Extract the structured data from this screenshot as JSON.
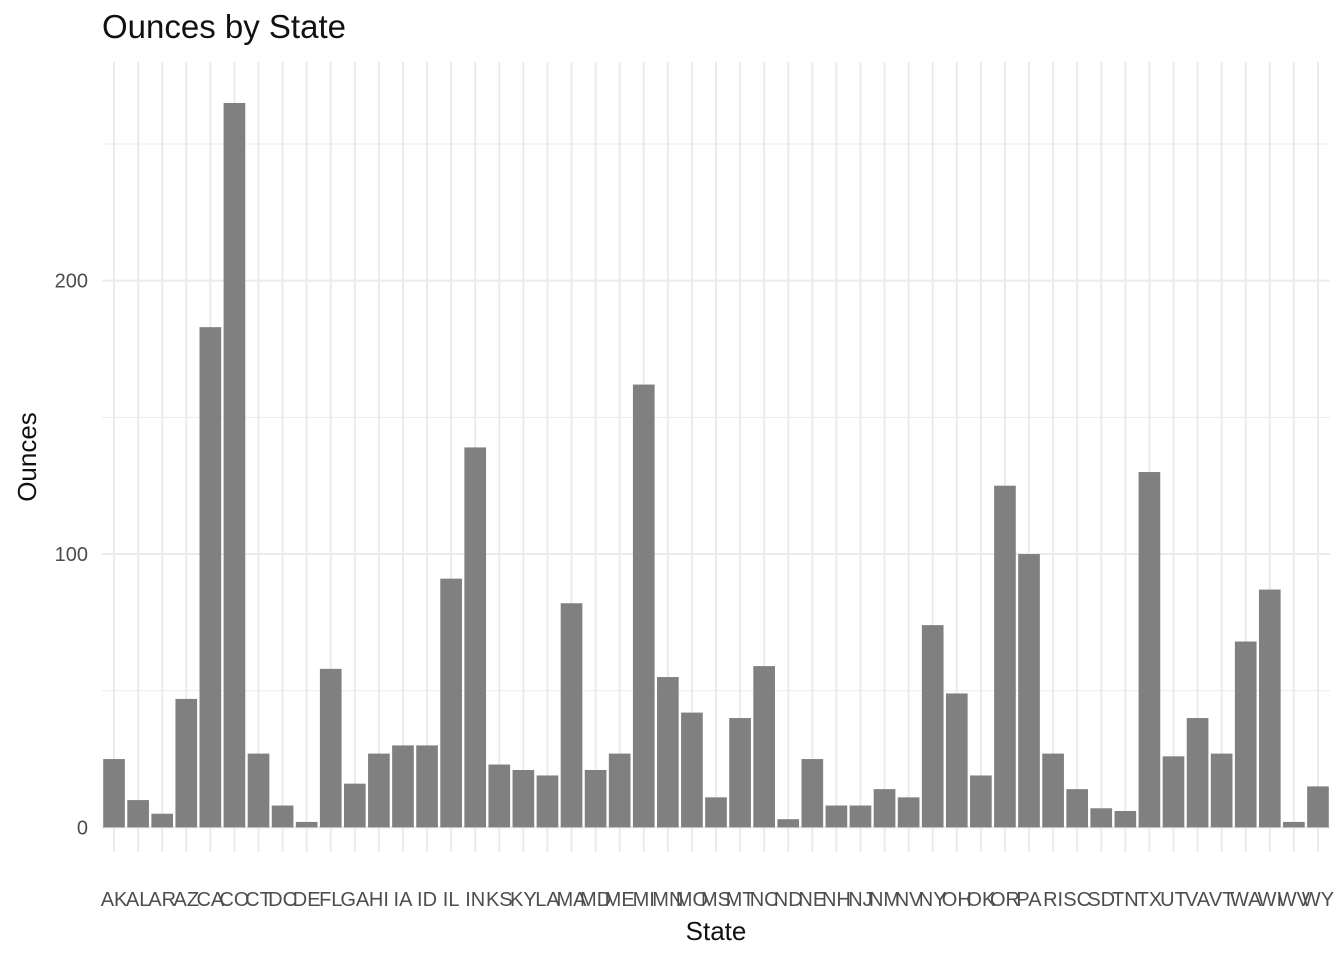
{
  "chart_data": {
    "type": "bar",
    "title": "Ounces by State",
    "xlabel": "State",
    "ylabel": "Ounces",
    "categories": [
      "AK",
      "AL",
      "AR",
      "AZ",
      "CA",
      "CO",
      "CT",
      "DC",
      "DE",
      "FL",
      "GA",
      "HI",
      "IA",
      "ID",
      "IL",
      "IN",
      "KS",
      "KY",
      "LA",
      "MA",
      "MD",
      "ME",
      "MI",
      "MN",
      "MO",
      "MS",
      "MT",
      "NC",
      "ND",
      "NE",
      "NH",
      "NJ",
      "NM",
      "NV",
      "NY",
      "OH",
      "OK",
      "OR",
      "PA",
      "RI",
      "SC",
      "SD",
      "TN",
      "TX",
      "UT",
      "VA",
      "VT",
      "WA",
      "WI",
      "WV",
      "WY"
    ],
    "values": [
      25,
      10,
      5,
      47,
      183,
      265,
      27,
      8,
      2,
      58,
      16,
      27,
      30,
      30,
      91,
      139,
      23,
      21,
      19,
      82,
      21,
      27,
      162,
      55,
      42,
      11,
      40,
      59,
      3,
      25,
      8,
      8,
      14,
      11,
      74,
      49,
      19,
      125,
      100,
      27,
      14,
      7,
      6,
      130,
      26,
      40,
      27,
      68,
      87,
      2,
      15
    ],
    "ylim": [
      -9,
      280
    ],
    "yticks": [
      0,
      100,
      200
    ],
    "grid": true,
    "bar_color": "#808080",
    "grid_color": "#ebebeb"
  }
}
